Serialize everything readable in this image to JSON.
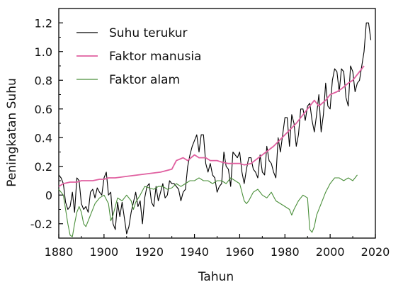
{
  "chart_data": {
    "type": "line",
    "title": "",
    "xlabel": "Tahun",
    "ylabel": "Peningkatan Suhu",
    "xlim": [
      1880,
      2020
    ],
    "ylim": [
      -0.3,
      1.3
    ],
    "xticks": [
      1880,
      1900,
      1920,
      1940,
      1960,
      1980,
      2000,
      2020
    ],
    "xtick_labels": [
      "1880",
      "1900",
      "1920",
      "1940",
      "1960",
      "1980",
      "2000",
      "2020"
    ],
    "yticks": [
      -0.2,
      0,
      0.2,
      0.4,
      0.6,
      0.8,
      1.0,
      1.2
    ],
    "ytick_labels": [
      "-0.2",
      "0",
      "0.2",
      "0.4",
      "0.6",
      "0.8",
      "1.0",
      "1.2"
    ],
    "grid": false,
    "legend_position": "top-left",
    "series": [
      {
        "name": "Suhu terukur",
        "color": "#000000",
        "x": [
          1880,
          1881,
          1882,
          1883,
          1884,
          1885,
          1886,
          1887,
          1888,
          1889,
          1890,
          1891,
          1892,
          1893,
          1894,
          1895,
          1896,
          1897,
          1898,
          1899,
          1900,
          1901,
          1902,
          1903,
          1904,
          1905,
          1906,
          1907,
          1908,
          1909,
          1910,
          1911,
          1912,
          1913,
          1914,
          1915,
          1916,
          1917,
          1918,
          1919,
          1920,
          1921,
          1922,
          1923,
          1924,
          1925,
          1926,
          1927,
          1928,
          1929,
          1930,
          1931,
          1932,
          1933,
          1934,
          1935,
          1936,
          1937,
          1938,
          1939,
          1940,
          1941,
          1942,
          1943,
          1944,
          1945,
          1946,
          1947,
          1948,
          1949,
          1950,
          1951,
          1952,
          1953,
          1954,
          1955,
          1956,
          1957,
          1958,
          1959,
          1960,
          1961,
          1962,
          1963,
          1964,
          1965,
          1966,
          1967,
          1968,
          1969,
          1970,
          1971,
          1972,
          1973,
          1974,
          1975,
          1976,
          1977,
          1978,
          1979,
          1980,
          1981,
          1982,
          1983,
          1984,
          1985,
          1986,
          1987,
          1988,
          1989,
          1990,
          1991,
          1992,
          1993,
          1994,
          1995,
          1996,
          1997,
          1998,
          1999,
          2000,
          2001,
          2002,
          2003,
          2004,
          2005,
          2006,
          2007,
          2008,
          2009,
          2010,
          2011,
          2012,
          2013,
          2014,
          2015,
          2016,
          2017,
          2018
        ],
        "values": [
          0.14,
          0.12,
          0.08,
          -0.05,
          -0.1,
          -0.08,
          0.02,
          -0.12,
          0.12,
          0.1,
          -0.06,
          -0.1,
          -0.08,
          -0.12,
          0.02,
          0.04,
          -0.02,
          0.05,
          0.02,
          0.0,
          0.12,
          0.16,
          0.0,
          0.02,
          -0.2,
          -0.24,
          -0.05,
          -0.15,
          -0.05,
          -0.16,
          -0.27,
          -0.22,
          -0.12,
          -0.05,
          0.02,
          -0.08,
          -0.04,
          -0.2,
          -0.02,
          0.06,
          0.08,
          -0.05,
          -0.08,
          0.06,
          -0.04,
          0.02,
          0.08,
          -0.02,
          0.0,
          0.1,
          0.08,
          0.08,
          0.06,
          0.04,
          -0.04,
          0.02,
          0.04,
          0.2,
          0.28,
          0.34,
          0.38,
          0.42,
          0.3,
          0.42,
          0.42,
          0.22,
          0.16,
          0.22,
          0.14,
          0.12,
          0.02,
          0.06,
          0.08,
          0.3,
          0.2,
          0.18,
          0.06,
          0.3,
          0.28,
          0.26,
          0.3,
          0.16,
          0.08,
          0.18,
          0.26,
          0.26,
          0.18,
          0.16,
          0.12,
          0.28,
          0.16,
          0.14,
          0.34,
          0.24,
          0.22,
          0.16,
          0.12,
          0.4,
          0.3,
          0.42,
          0.54,
          0.54,
          0.34,
          0.56,
          0.5,
          0.34,
          0.42,
          0.6,
          0.6,
          0.52,
          0.62,
          0.64,
          0.52,
          0.44,
          0.56,
          0.7,
          0.44,
          0.56,
          0.78,
          0.62,
          0.6,
          0.8,
          0.88,
          0.86,
          0.72,
          0.88,
          0.86,
          0.68,
          0.62,
          0.9,
          0.86,
          0.72,
          0.78,
          0.8,
          0.9,
          1.0,
          1.2,
          1.2,
          1.08
        ]
      },
      {
        "name": "Faktor manusia",
        "color": "#e060a0",
        "x": [
          1880,
          1882,
          1885,
          1888,
          1890,
          1892,
          1895,
          1898,
          1900,
          1902,
          1905,
          1910,
          1915,
          1920,
          1925,
          1930,
          1932,
          1935,
          1937,
          1940,
          1942,
          1945,
          1947,
          1950,
          1952,
          1955,
          1958,
          1960,
          1962,
          1965,
          1970,
          1975,
          1980,
          1985,
          1990,
          1993,
          1995,
          1998,
          2000,
          2003,
          2005,
          2008,
          2010,
          2015
        ],
        "values": [
          0.06,
          0.08,
          0.09,
          0.09,
          0.1,
          0.1,
          0.1,
          0.11,
          0.11,
          0.12,
          0.12,
          0.13,
          0.14,
          0.15,
          0.16,
          0.18,
          0.24,
          0.26,
          0.24,
          0.28,
          0.26,
          0.26,
          0.24,
          0.24,
          0.23,
          0.22,
          0.22,
          0.22,
          0.21,
          0.22,
          0.28,
          0.34,
          0.42,
          0.5,
          0.6,
          0.66,
          0.62,
          0.66,
          0.7,
          0.72,
          0.74,
          0.78,
          0.8,
          0.9
        ]
      },
      {
        "name": "Faktor alam",
        "color": "#4a8f3a",
        "x": [
          1880,
          1882,
          1883,
          1884,
          1885,
          1886,
          1887,
          1888,
          1889,
          1890,
          1891,
          1892,
          1894,
          1896,
          1898,
          1900,
          1902,
          1903,
          1904,
          1905,
          1906,
          1908,
          1910,
          1912,
          1913,
          1914,
          1916,
          1918,
          1920,
          1922,
          1924,
          1926,
          1928,
          1930,
          1932,
          1934,
          1936,
          1938,
          1940,
          1942,
          1944,
          1946,
          1948,
          1950,
          1952,
          1954,
          1956,
          1958,
          1960,
          1962,
          1963,
          1964,
          1966,
          1968,
          1970,
          1972,
          1974,
          1976,
          1978,
          1980,
          1982,
          1983,
          1984,
          1986,
          1988,
          1990,
          1991,
          1992,
          1993,
          1994,
          1996,
          1998,
          2000,
          2002,
          2004,
          2006,
          2008,
          2010,
          2012
        ],
        "values": [
          0.04,
          0.0,
          -0.1,
          -0.2,
          -0.28,
          -0.29,
          -0.2,
          -0.12,
          -0.08,
          -0.12,
          -0.2,
          -0.22,
          -0.14,
          -0.06,
          -0.02,
          0.0,
          -0.06,
          -0.18,
          -0.14,
          -0.08,
          -0.02,
          -0.04,
          0.0,
          -0.04,
          -0.1,
          -0.05,
          0.0,
          0.06,
          0.05,
          0.04,
          0.06,
          0.06,
          0.04,
          0.05,
          0.08,
          0.06,
          0.08,
          0.1,
          0.1,
          0.12,
          0.1,
          0.1,
          0.08,
          0.1,
          0.1,
          0.08,
          0.12,
          0.1,
          0.08,
          -0.04,
          -0.06,
          -0.04,
          0.02,
          0.04,
          0.0,
          -0.02,
          0.02,
          -0.04,
          -0.06,
          -0.08,
          -0.1,
          -0.14,
          -0.1,
          -0.04,
          0.0,
          -0.02,
          -0.24,
          -0.26,
          -0.22,
          -0.14,
          -0.06,
          0.02,
          0.08,
          0.12,
          0.12,
          0.1,
          0.12,
          0.1,
          0.14
        ]
      }
    ]
  }
}
